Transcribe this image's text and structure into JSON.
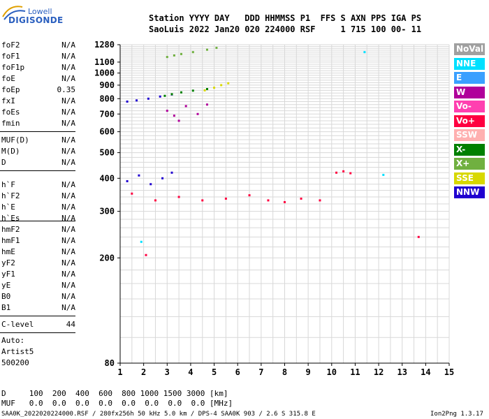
{
  "logo": {
    "top": "Lowell",
    "bottom": "DIGISONDE"
  },
  "header": {
    "line1": "Station YYYY DAY   DDD HHMMSS P1  FFS S AXN PPS IGA PS",
    "line2": "SaoLuis 2022 Jan20 020 224000 RSF     1 715 100 00- 11"
  },
  "params": [
    {
      "name": "foF2",
      "value": "N/A"
    },
    {
      "name": "foF1",
      "value": "N/A"
    },
    {
      "name": "foF1p",
      "value": "N/A"
    },
    {
      "name": "foE",
      "value": "N/A"
    },
    {
      "name": "foEp",
      "value": "0.35"
    },
    {
      "name": "fxI",
      "value": "N/A"
    },
    {
      "name": "foEs",
      "value": "N/A"
    },
    {
      "name": "fmin",
      "value": "N/A"
    },
    {
      "name": "MUF(D)",
      "value": "N/A"
    },
    {
      "name": "M(D)",
      "value": "N/A"
    },
    {
      "name": "D",
      "value": "N/A"
    },
    {
      "name": "h`F",
      "value": "N/A"
    },
    {
      "name": "h`F2",
      "value": "N/A"
    },
    {
      "name": "h`E",
      "value": "N/A"
    },
    {
      "name": "h`Es",
      "value": "N/A"
    },
    {
      "name": "hmF2",
      "value": "N/A"
    },
    {
      "name": "hmF1",
      "value": "N/A"
    },
    {
      "name": "hmE",
      "value": "N/A"
    },
    {
      "name": "yF2",
      "value": "N/A"
    },
    {
      "name": "yF1",
      "value": "N/A"
    },
    {
      "name": "yE",
      "value": "N/A"
    },
    {
      "name": "B0",
      "value": "N/A"
    },
    {
      "name": "B1",
      "value": "N/A"
    },
    {
      "name": "C-level",
      "value": "44"
    }
  ],
  "auto": {
    "label": "Auto:",
    "artist": "Artist5",
    "version": "500200"
  },
  "bottom": {
    "d_line": "D     100  200  400  600  800 1000 1500 3000 [km]",
    "muf_line": "MUF   0.0  0.0  0.0  0.0  0.0  0.0  0.0  0.0 [MHz]",
    "file_line": "SAA0K_2022020224000.RSF / 280fx256h 50 kHz 5.0 km / DPS-4 SAA0K 903 / 2.6 S 315.8 E",
    "version": "Ion2Png 1.3.17"
  },
  "legend": [
    {
      "label": "NoVal",
      "color": "#a0a0a0"
    },
    {
      "label": "NNE",
      "color": "#00e0ff"
    },
    {
      "label": "E",
      "color": "#3aa0ff"
    },
    {
      "label": "W",
      "color": "#b0009a"
    },
    {
      "label": "Vo-",
      "color": "#ff40b0"
    },
    {
      "label": "Vo+",
      "color": "#ff0040"
    },
    {
      "label": "SSW",
      "color": "#ffb0b0"
    },
    {
      "label": "X-",
      "color": "#008000"
    },
    {
      "label": "X+",
      "color": "#70b040"
    },
    {
      "label": "SSE",
      "color": "#d8d800"
    },
    {
      "label": "NNW",
      "color": "#2000d0"
    }
  ],
  "chart_data": {
    "type": "scatter",
    "title": "",
    "xlabel": "",
    "ylabel": "",
    "xlim": [
      1,
      15
    ],
    "ylim": [
      80,
      1280
    ],
    "y_scale": "log",
    "x_ticks": [
      1,
      2,
      3,
      4,
      5,
      6,
      7,
      8,
      9,
      10,
      11,
      12,
      13,
      14,
      15
    ],
    "y_ticks": [
      80,
      200,
      300,
      400,
      500,
      600,
      700,
      800,
      900,
      1000,
      1100,
      1280
    ],
    "grid": true,
    "series": [
      {
        "name": "X+",
        "points": [
          [
            3.0,
            1150
          ],
          [
            3.3,
            1165
          ],
          [
            3.6,
            1180
          ],
          [
            4.1,
            1200
          ],
          [
            4.7,
            1225
          ],
          [
            5.1,
            1245
          ]
        ]
      },
      {
        "name": "NNW",
        "points": [
          [
            1.3,
            780
          ],
          [
            1.7,
            788
          ],
          [
            2.2,
            800
          ],
          [
            2.7,
            815
          ],
          [
            3.2,
            830
          ]
        ]
      },
      {
        "name": "X-",
        "points": [
          [
            2.9,
            820
          ],
          [
            3.2,
            832
          ],
          [
            3.6,
            845
          ],
          [
            4.1,
            858
          ],
          [
            4.7,
            870
          ]
        ]
      },
      {
        "name": "SSE",
        "points": [
          [
            4.6,
            860
          ],
          [
            5.0,
            880
          ],
          [
            5.3,
            900
          ],
          [
            5.6,
            915
          ]
        ]
      },
      {
        "name": "W",
        "points": [
          [
            3.0,
            720
          ],
          [
            3.3,
            690
          ],
          [
            3.5,
            660
          ],
          [
            3.8,
            750
          ],
          [
            4.3,
            700
          ],
          [
            4.7,
            760
          ]
        ]
      },
      {
        "name": "Vo+",
        "points": [
          [
            1.5,
            350
          ],
          [
            2.5,
            330
          ],
          [
            3.5,
            340
          ],
          [
            4.5,
            330
          ],
          [
            5.5,
            335
          ],
          [
            6.5,
            345
          ],
          [
            7.3,
            330
          ],
          [
            8.0,
            325
          ],
          [
            8.7,
            335
          ],
          [
            9.5,
            330
          ]
        ]
      },
      {
        "name": "NNW",
        "points": [
          [
            1.3,
            390
          ],
          [
            1.8,
            410
          ],
          [
            2.3,
            380
          ],
          [
            2.8,
            400
          ],
          [
            3.2,
            420
          ]
        ]
      },
      {
        "name": "NNE",
        "points": [
          [
            1.9,
            230
          ],
          [
            11.4,
            1200
          ],
          [
            12.2,
            412
          ]
        ]
      },
      {
        "name": "Vo+",
        "points": [
          [
            10.2,
            420
          ],
          [
            10.5,
            425
          ],
          [
            10.8,
            418
          ],
          [
            13.7,
            240
          ],
          [
            2.1,
            205
          ]
        ]
      }
    ]
  }
}
